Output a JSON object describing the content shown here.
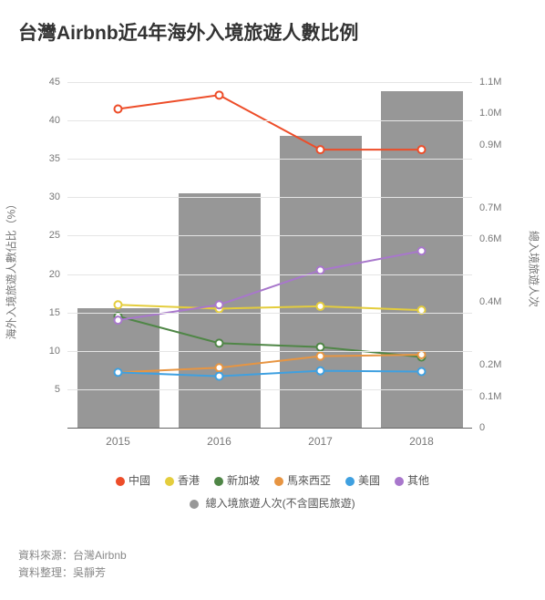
{
  "title": "台灣Airbnb近4年海外入境旅遊人數比例",
  "chart": {
    "categories": [
      "2015",
      "2016",
      "2017",
      "2018"
    ],
    "y_left": {
      "label": "海外入境旅遊人數佔比（%）",
      "min": 0,
      "max": 45,
      "step": 5,
      "ticks": [
        5,
        10,
        15,
        20,
        25,
        30,
        35,
        40,
        45
      ]
    },
    "y_right": {
      "label": "總入境旅遊人次",
      "min": 0,
      "max": 1100000,
      "ticks": [
        {
          "v": 0,
          "label": "0"
        },
        {
          "v": 100000,
          "label": "0.1M"
        },
        {
          "v": 200000,
          "label": "0.2M"
        },
        {
          "v": 400000,
          "label": "0.4M"
        },
        {
          "v": 600000,
          "label": "0.6M"
        },
        {
          "v": 700000,
          "label": "0.7M"
        },
        {
          "v": 900000,
          "label": "0.9M"
        },
        {
          "v": 1000000,
          "label": "1.0M"
        },
        {
          "v": 1100000,
          "label": "1.1M"
        }
      ]
    },
    "bars": {
      "name": "總入境旅遊人次(不含國民旅遊)",
      "color": "#979797",
      "values": [
        380000,
        745000,
        930000,
        1070000
      ]
    },
    "series": [
      {
        "name": "中國",
        "color": "#ed4d29",
        "values": [
          41.5,
          43.3,
          36.2,
          36.2
        ]
      },
      {
        "name": "香港",
        "color": "#e4cd3d",
        "values": [
          16,
          15.5,
          15.8,
          15.3
        ]
      },
      {
        "name": "新加坡",
        "color": "#4f8646",
        "values": [
          14.5,
          11,
          10.5,
          9.2
        ]
      },
      {
        "name": "馬來西亞",
        "color": "#e79542",
        "values": [
          7.2,
          7.8,
          9.3,
          9.5
        ]
      },
      {
        "name": "美國",
        "color": "#3fa0e0",
        "values": [
          7.2,
          6.7,
          7.4,
          7.3
        ]
      },
      {
        "name": "其他",
        "color": "#a877cc",
        "values": [
          14,
          16,
          20.5,
          23
        ]
      }
    ],
    "point_radius": 4,
    "line_width": 2,
    "background": "#ffffff",
    "grid_color": "#e5e5e5"
  },
  "footer": {
    "source": "資料來源：台灣Airbnb",
    "credit": "資料整理：吳靜芳"
  }
}
